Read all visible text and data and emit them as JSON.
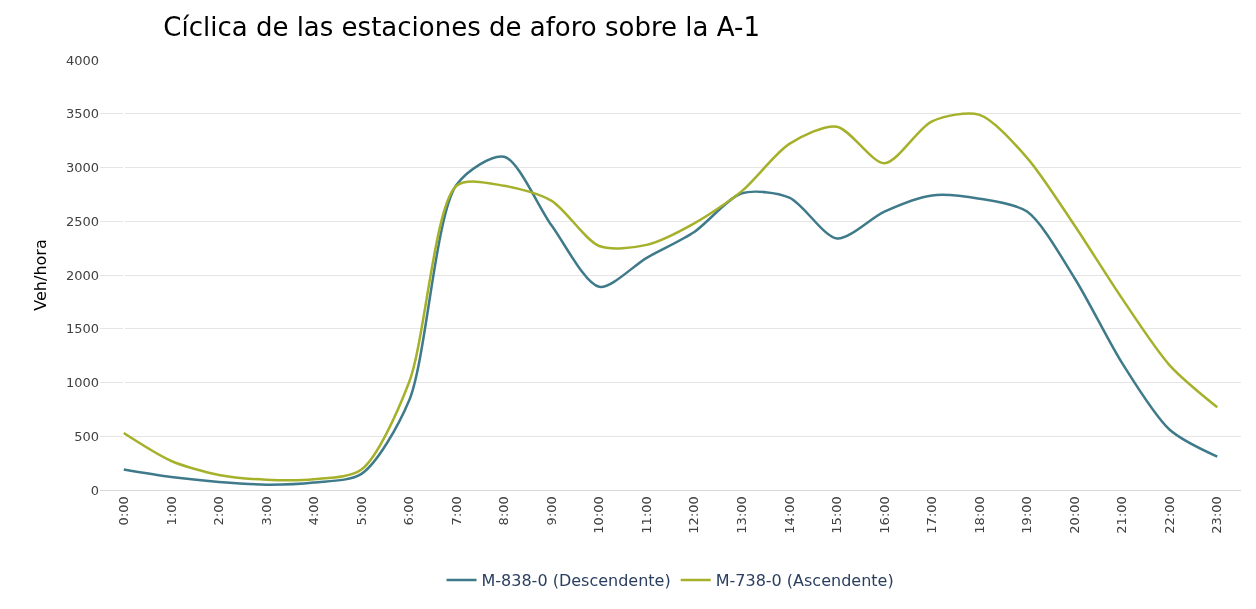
{
  "chart_data": {
    "type": "line",
    "title": "Cíclica de las estaciones de aforo sobre la A-1",
    "ylabel": "Veh/hora",
    "categories": [
      "0:00",
      "1:00",
      "2:00",
      "3:00",
      "4:00",
      "5:00",
      "6:00",
      "7:00",
      "8:00",
      "9:00",
      "10:00",
      "11:00",
      "12:00",
      "13:00",
      "14:00",
      "15:00",
      "16:00",
      "17:00",
      "18:00",
      "19:00",
      "20:00",
      "21:00",
      "22:00",
      "23:00"
    ],
    "series": [
      {
        "name": "M-838-0 (Descendente)",
        "color": "#3f7a8a",
        "values": [
          190,
          120,
          75,
          50,
          70,
          150,
          830,
          2840,
          3100,
          2460,
          1890,
          2160,
          2400,
          2760,
          2720,
          2340,
          2590,
          2740,
          2710,
          2590,
          1970,
          1180,
          560,
          310
        ]
      },
      {
        "name": "M-738-0 (Ascendente)",
        "color": "#a5b12a",
        "values": [
          530,
          270,
          140,
          95,
          100,
          190,
          1000,
          2830,
          2830,
          2690,
          2270,
          2280,
          2480,
          2780,
          3220,
          3380,
          3040,
          3430,
          3490,
          3090,
          2460,
          1780,
          1160,
          770
        ]
      }
    ],
    "ylim": [
      0,
      4000
    ],
    "yticks": [
      0,
      500,
      1000,
      1500,
      2000,
      2500,
      3000,
      3500,
      4000
    ],
    "grid": "y",
    "legend": "bottom",
    "marker": "none",
    "line_style": "solid"
  }
}
